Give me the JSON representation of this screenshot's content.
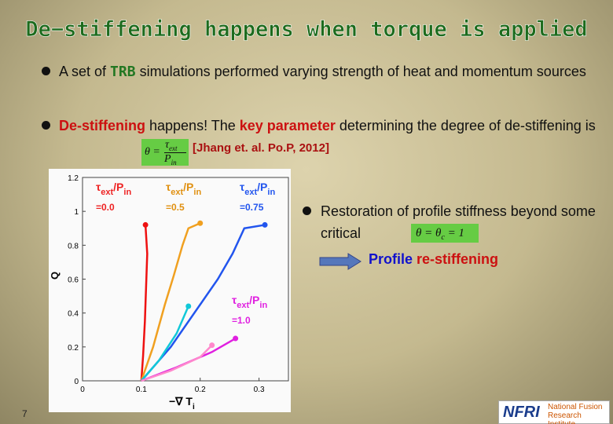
{
  "slide": {
    "title": "De−stiffening happens when torque is applied",
    "bullet1": [
      "A set of ",
      "TRB",
      " simulations performed varying strength of heat and momentum sources"
    ],
    "bullet2": [
      "De-stiffening",
      " happens! The ",
      "key parameter",
      " determining the degree of de-stiffening is "
    ],
    "formula1": {
      "lhs": "θ =",
      "num": "τ",
      "num_sub": "ext",
      "den": "P",
      "den_sub": "in"
    },
    "reference": "[Jhang et. al. Po.P, 2012]",
    "bullet3": "Restoration of profile stiffness beyond some critical ",
    "formula2": {
      "a": "θ = θ",
      "sub": "c",
      "b": " = 1"
    },
    "arrow_text": [
      "Profile ",
      "re-stiffening"
    ],
    "page_number": "7",
    "logo": {
      "mark": "NFRI",
      "line1": "National Fusion",
      "line2": "Research Institute"
    }
  },
  "chart_data": {
    "type": "line",
    "x_label": {
      "main": "−∇ T",
      "sub": "i"
    },
    "y_label": "Q",
    "xlim": [
      0,
      0.35
    ],
    "xticks": [
      0,
      0.1,
      0.2,
      0.3
    ],
    "ylim": [
      0,
      1.2
    ],
    "yticks": [
      0,
      0.2,
      0.4,
      0.6,
      0.8,
      1,
      1.2
    ],
    "series": [
      {
        "color": "#ee1111",
        "x": [
          0.1,
          0.103,
          0.106,
          0.108,
          0.11,
          0.107
        ],
        "values": [
          0,
          0.15,
          0.35,
          0.55,
          0.75,
          0.92
        ]
      },
      {
        "color": "#f0a020",
        "x": [
          0.1,
          0.12,
          0.14,
          0.155,
          0.17,
          0.18,
          0.2
        ],
        "values": [
          0,
          0.2,
          0.45,
          0.62,
          0.8,
          0.9,
          0.93
        ]
      },
      {
        "color": "#2255ee",
        "x": [
          0.1,
          0.15,
          0.2,
          0.23,
          0.255,
          0.275,
          0.31
        ],
        "values": [
          0,
          0.2,
          0.45,
          0.6,
          0.75,
          0.9,
          0.92
        ]
      },
      {
        "color": "#11c8d8",
        "x": [
          0.1,
          0.13,
          0.16,
          0.18
        ],
        "values": [
          0,
          0.12,
          0.28,
          0.44
        ]
      },
      {
        "color": "#e020e0",
        "x": [
          0.1,
          0.16,
          0.22,
          0.26
        ],
        "values": [
          0,
          0.08,
          0.17,
          0.25
        ]
      },
      {
        "color": "#ff88cc",
        "x": [
          0.1,
          0.15,
          0.2,
          0.22
        ],
        "values": [
          0,
          0.06,
          0.14,
          0.21
        ]
      }
    ],
    "annotations": [
      {
        "a": "τ",
        "s1": "ext",
        "b": "/P",
        "s2": "in",
        "value": "=0.0",
        "color": "#ee2222"
      },
      {
        "a": "τ",
        "s1": "ext",
        "b": "/P",
        "s2": "in",
        "value": "=0.5",
        "color": "#e09010"
      },
      {
        "a": "τ",
        "s1": "ext",
        "b": "/P",
        "s2": "in",
        "value": "=0.75",
        "color": "#2255ee"
      },
      {
        "a": "τ",
        "s1": "ext",
        "b": "/P",
        "s2": "in",
        "value": "=1.0",
        "color": "#e020e0"
      }
    ]
  }
}
